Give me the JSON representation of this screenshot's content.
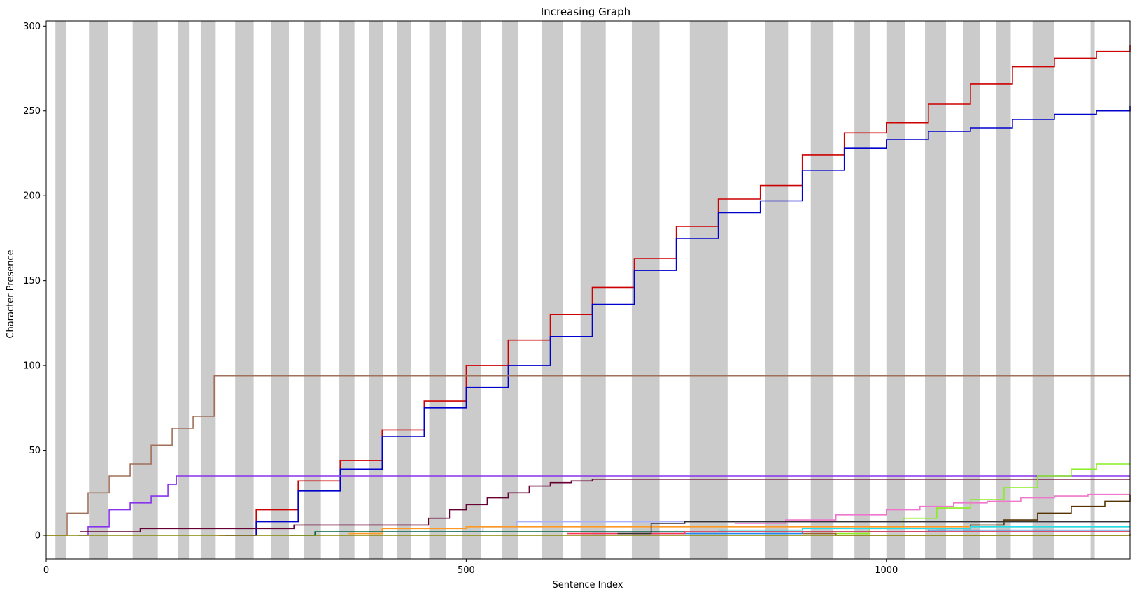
{
  "chart_data": {
    "type": "line",
    "title": "Increasing Graph",
    "xlabel": "Sentence Index",
    "ylabel": "Character Presence",
    "xlim": [
      0,
      1290
    ],
    "ylim": [
      -14,
      303
    ],
    "xticks": [
      0,
      500,
      1000
    ],
    "yticks": [
      0,
      50,
      100,
      150,
      200,
      250,
      300
    ],
    "grid": false,
    "legend": "none",
    "shaded_bands": [
      [
        11,
        24
      ],
      [
        51,
        74
      ],
      [
        103,
        133
      ],
      [
        157,
        170
      ],
      [
        184,
        201
      ],
      [
        225,
        247
      ],
      [
        268,
        289
      ],
      [
        307,
        327
      ],
      [
        349,
        367
      ],
      [
        384,
        401
      ],
      [
        418,
        434
      ],
      [
        456,
        476
      ],
      [
        495,
        518
      ],
      [
        543,
        562
      ],
      [
        590,
        615
      ],
      [
        636,
        666
      ],
      [
        697,
        730
      ],
      [
        766,
        811
      ],
      [
        856,
        883
      ],
      [
        910,
        937
      ],
      [
        962,
        981
      ],
      [
        1000,
        1022
      ],
      [
        1046,
        1071
      ],
      [
        1091,
        1111
      ],
      [
        1131,
        1148
      ],
      [
        1174,
        1200
      ],
      [
        1243,
        1248
      ]
    ],
    "band_color": "#cbcbcb",
    "series": [
      {
        "color": "#cc0000",
        "points": [
          [
            205,
            0
          ],
          [
            250,
            15
          ],
          [
            300,
            32
          ],
          [
            350,
            44
          ],
          [
            400,
            62
          ],
          [
            450,
            79
          ],
          [
            500,
            100
          ],
          [
            550,
            115
          ],
          [
            600,
            130
          ],
          [
            650,
            146
          ],
          [
            700,
            163
          ],
          [
            750,
            182
          ],
          [
            800,
            198
          ],
          [
            850,
            206
          ],
          [
            900,
            224
          ],
          [
            950,
            237
          ],
          [
            1000,
            243
          ],
          [
            1050,
            254
          ],
          [
            1100,
            266
          ],
          [
            1150,
            276
          ],
          [
            1200,
            281
          ],
          [
            1250,
            285
          ],
          [
            1290,
            289
          ]
        ]
      },
      {
        "color": "#0000cc",
        "points": [
          [
            213,
            0
          ],
          [
            250,
            8
          ],
          [
            300,
            26
          ],
          [
            350,
            39
          ],
          [
            400,
            58
          ],
          [
            450,
            75
          ],
          [
            500,
            87
          ],
          [
            550,
            100
          ],
          [
            600,
            117
          ],
          [
            650,
            136
          ],
          [
            700,
            156
          ],
          [
            750,
            175
          ],
          [
            800,
            190
          ],
          [
            850,
            197
          ],
          [
            900,
            215
          ],
          [
            950,
            228
          ],
          [
            1000,
            233
          ],
          [
            1050,
            238
          ],
          [
            1100,
            240
          ],
          [
            1150,
            245
          ],
          [
            1200,
            248
          ],
          [
            1250,
            250
          ],
          [
            1290,
            253
          ]
        ]
      },
      {
        "color": "#a0705a",
        "points": [
          [
            0,
            0
          ],
          [
            25,
            13
          ],
          [
            50,
            25
          ],
          [
            75,
            35
          ],
          [
            100,
            42
          ],
          [
            125,
            53
          ],
          [
            150,
            63
          ],
          [
            175,
            70
          ],
          [
            200,
            94
          ],
          [
            1290,
            94
          ]
        ]
      },
      {
        "color": "#8833ee",
        "points": [
          [
            38,
            0
          ],
          [
            50,
            5
          ],
          [
            75,
            15
          ],
          [
            100,
            19
          ],
          [
            125,
            23
          ],
          [
            145,
            30
          ],
          [
            155,
            35
          ],
          [
            1290,
            35
          ]
        ]
      },
      {
        "color": "#660033",
        "points": [
          [
            40,
            2
          ],
          [
            110,
            2
          ],
          [
            112,
            4
          ],
          [
            290,
            4
          ],
          [
            295,
            6
          ],
          [
            450,
            6
          ],
          [
            455,
            10
          ],
          [
            480,
            15
          ],
          [
            500,
            18
          ],
          [
            525,
            22
          ],
          [
            550,
            25
          ],
          [
            575,
            29
          ],
          [
            600,
            31
          ],
          [
            625,
            32
          ],
          [
            650,
            33
          ],
          [
            870,
            33
          ],
          [
            872,
            33
          ],
          [
            1290,
            33
          ]
        ]
      },
      {
        "color": "#88ee22",
        "points": [
          [
            940,
            1
          ],
          [
            980,
            5
          ],
          [
            1020,
            10
          ],
          [
            1060,
            16
          ],
          [
            1100,
            21
          ],
          [
            1140,
            28
          ],
          [
            1180,
            35
          ],
          [
            1220,
            39
          ],
          [
            1240,
            39
          ],
          [
            1250,
            42
          ],
          [
            1290,
            42
          ]
        ]
      },
      {
        "color": "#ee77cc",
        "points": [
          [
            820,
            7
          ],
          [
            880,
            9
          ],
          [
            940,
            12
          ],
          [
            1000,
            15
          ],
          [
            1040,
            17
          ],
          [
            1080,
            19
          ],
          [
            1120,
            20
          ],
          [
            1160,
            22
          ],
          [
            1200,
            23
          ],
          [
            1240,
            24
          ],
          [
            1290,
            24
          ]
        ]
      },
      {
        "color": "#553300",
        "points": [
          [
            1060,
            4
          ],
          [
            1100,
            6
          ],
          [
            1140,
            9
          ],
          [
            1180,
            13
          ],
          [
            1220,
            17
          ],
          [
            1260,
            20
          ],
          [
            1290,
            24
          ]
        ]
      },
      {
        "color": "#aab0ff",
        "points": [
          [
            480,
            2
          ],
          [
            520,
            5
          ],
          [
            560,
            8
          ],
          [
            900,
            8
          ],
          [
            1290,
            8
          ]
        ]
      },
      {
        "color": "#ff9922",
        "points": [
          [
            360,
            1
          ],
          [
            400,
            4
          ],
          [
            500,
            5
          ],
          [
            700,
            5
          ],
          [
            1290,
            5
          ]
        ]
      },
      {
        "color": "#22ddee",
        "points": [
          [
            800,
            3
          ],
          [
            900,
            4
          ],
          [
            1100,
            5
          ],
          [
            1290,
            5
          ]
        ]
      },
      {
        "color": "#2288ee",
        "points": [
          [
            650,
            1
          ],
          [
            900,
            2
          ],
          [
            1050,
            3
          ],
          [
            1290,
            3
          ]
        ]
      },
      {
        "color": "#006644",
        "points": [
          [
            290,
            0
          ],
          [
            320,
            2
          ],
          [
            500,
            2
          ],
          [
            600,
            2
          ],
          [
            1290,
            2
          ]
        ]
      },
      {
        "color": "#ff3355",
        "points": [
          [
            620,
            1
          ],
          [
            760,
            2
          ],
          [
            1290,
            2
          ]
        ]
      },
      {
        "color": "#333333",
        "points": [
          [
            680,
            1
          ],
          [
            720,
            7
          ],
          [
            760,
            8
          ],
          [
            1290,
            8
          ]
        ]
      },
      {
        "color": "#996633",
        "points": [
          [
            900,
            1
          ],
          [
            940,
            0
          ],
          [
            1290,
            1
          ]
        ]
      },
      {
        "color": "#888800",
        "points": [
          [
            0,
            0
          ],
          [
            1290,
            0
          ]
        ]
      }
    ]
  }
}
